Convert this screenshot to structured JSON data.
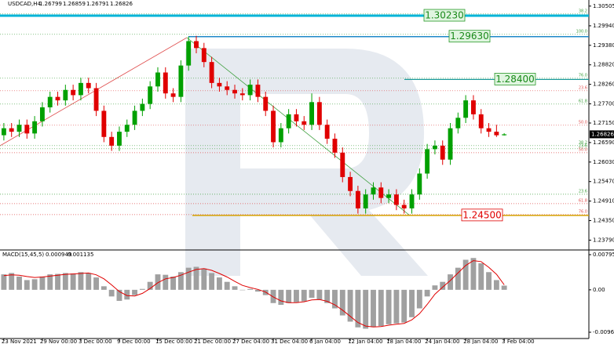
{
  "chart_data": [
    {
      "type": "candlestick",
      "title": "USDCAD,H4",
      "up_color": "#00a000",
      "down_color": "#e00000",
      "open": [
        1.268,
        1.27,
        1.269,
        1.271,
        1.2685,
        1.272,
        1.276,
        1.279,
        1.278,
        1.281,
        1.2795,
        1.283,
        1.2815,
        1.275,
        1.2675,
        1.265,
        1.269,
        1.271,
        1.275,
        1.277,
        1.282,
        1.286,
        1.28,
        1.279,
        1.288,
        1.295,
        1.293,
        1.289,
        1.283,
        1.282,
        1.281,
        1.28,
        1.2795,
        1.2825,
        1.279,
        1.275,
        1.266,
        1.27,
        1.274,
        1.272,
        1.271,
        1.2775,
        1.271,
        1.267,
        1.263,
        1.256,
        1.252,
        1.247,
        1.251,
        1.253,
        1.25,
        1.251,
        1.248,
        1.247,
        1.251,
        1.257,
        1.264,
        1.265,
        1.261,
        1.27,
        1.273,
        1.278,
        1.274,
        1.27,
        1.269,
        1.26799
      ],
      "high": [
        1.2715,
        1.2715,
        1.2725,
        1.2725,
        1.2735,
        1.2775,
        1.2805,
        1.2805,
        1.2825,
        1.2825,
        1.2845,
        1.2845,
        1.283,
        1.2765,
        1.269,
        1.2705,
        1.2725,
        1.2765,
        1.2785,
        1.2835,
        1.2875,
        1.2875,
        1.2815,
        1.2895,
        1.2963,
        1.2965,
        1.2945,
        1.2905,
        1.2845,
        1.2835,
        1.2825,
        1.2815,
        1.284,
        1.284,
        1.2805,
        1.2765,
        1.2715,
        1.2755,
        1.2755,
        1.2735,
        1.28,
        1.279,
        1.2725,
        1.2685,
        1.2645,
        1.2575,
        1.2535,
        1.2525,
        1.2545,
        1.2545,
        1.2525,
        1.2525,
        1.2495,
        1.2525,
        1.2585,
        1.2655,
        1.2665,
        1.2665,
        1.2715,
        1.2745,
        1.2795,
        1.2795,
        1.2755,
        1.2715,
        1.271,
        1.26859
      ],
      "low": [
        1.2665,
        1.2675,
        1.2675,
        1.267,
        1.267,
        1.2705,
        1.2745,
        1.2765,
        1.2765,
        1.278,
        1.278,
        1.28,
        1.2735,
        1.266,
        1.2635,
        1.2635,
        1.2675,
        1.2695,
        1.2735,
        1.2755,
        1.2805,
        1.2785,
        1.2775,
        1.2775,
        1.2865,
        1.2915,
        1.2875,
        1.2815,
        1.2805,
        1.2795,
        1.2785,
        1.278,
        1.278,
        1.2775,
        1.2735,
        1.2645,
        1.2645,
        1.2685,
        1.2705,
        1.2695,
        1.2695,
        1.2695,
        1.2655,
        1.2615,
        1.2545,
        1.2505,
        1.2455,
        1.2455,
        1.2495,
        1.2485,
        1.2485,
        1.2465,
        1.2455,
        1.2455,
        1.2495,
        1.2555,
        1.2625,
        1.2595,
        1.2595,
        1.2685,
        1.2715,
        1.2725,
        1.2685,
        1.2675,
        1.2675,
        1.26791
      ],
      "close": [
        1.27,
        1.269,
        1.271,
        1.2685,
        1.272,
        1.276,
        1.279,
        1.278,
        1.281,
        1.2795,
        1.283,
        1.2815,
        1.275,
        1.2675,
        1.265,
        1.269,
        1.271,
        1.275,
        1.277,
        1.282,
        1.286,
        1.28,
        1.279,
        1.288,
        1.295,
        1.293,
        1.289,
        1.283,
        1.282,
        1.281,
        1.28,
        1.2795,
        1.2825,
        1.279,
        1.275,
        1.266,
        1.27,
        1.274,
        1.272,
        1.271,
        1.2775,
        1.271,
        1.267,
        1.263,
        1.256,
        1.252,
        1.247,
        1.251,
        1.253,
        1.25,
        1.251,
        1.248,
        1.247,
        1.251,
        1.257,
        1.264,
        1.265,
        1.261,
        1.27,
        1.273,
        1.278,
        1.274,
        1.27,
        1.269,
        1.26799,
        1.26826
      ],
      "xlim": [
        -0.5,
        76
      ],
      "xticks": [
        {
          "value": 0,
          "label": "23 Nov 2021"
        },
        {
          "value": 5,
          "label": "29 Nov 00:00"
        },
        {
          "value": 10,
          "label": "3 Dec 00:00"
        },
        {
          "value": 15,
          "label": "9 Dec 00:00"
        },
        {
          "value": 20,
          "label": "15 Dec 00:00"
        },
        {
          "value": 25,
          "label": "21 Dec 00:00"
        },
        {
          "value": 30,
          "label": "27 Dec 04:00"
        },
        {
          "value": 35,
          "label": "31 Dec 04:00"
        },
        {
          "value": 40,
          "label": "6 Jan 04:00"
        },
        {
          "value": 45,
          "label": "12 Jan 04:00"
        },
        {
          "value": 50,
          "label": "18 Jan 04:00"
        },
        {
          "value": 55,
          "label": "24 Jan 04:00"
        },
        {
          "value": 60,
          "label": "28 Jan 04:00"
        },
        {
          "value": 65,
          "label": "3 Feb 04:00"
        }
      ],
      "ylim": [
        1.2353,
        1.3068
      ],
      "yticks": [
        1.30505,
        {
          "value": 1.2994,
          "label": "1.29940"
        },
        {
          "value": 1.2938,
          "label": "1.29380"
        },
        {
          "value": 1.2882,
          "label": "1.28820"
        },
        {
          "value": 1.2826,
          "label": "1.28260"
        },
        {
          "value": 1.277,
          "label": "1.27700"
        },
        {
          "value": 1.2715,
          "label": "1.27150"
        },
        {
          "value": 1.2659,
          "label": "1.26590"
        },
        {
          "value": 1.2603,
          "label": "1.26030"
        },
        {
          "value": 1.2547,
          "label": "1.25470"
        },
        {
          "value": 1.2491,
          "label": "1.24910"
        },
        {
          "value": 1.2435,
          "label": "1.24350"
        },
        {
          "value": 1.2379,
          "label": "1.23790"
        }
      ],
      "levels": [
        {
          "value": 1.3023,
          "label": "1.30230",
          "color": "#00b4d8"
        },
        {
          "value": 1.2963,
          "label": "1.29630",
          "color": "#1e88c8"
        },
        {
          "value": 1.284,
          "label": "1.28400",
          "color": "#1a9a9a"
        },
        {
          "value": 1.245,
          "label": "1.24500",
          "color": "#d4a000"
        }
      ],
      "fibs": [
        {
          "value": 1.3028,
          "label": "38.2",
          "color": "#40a040"
        },
        {
          "value": 1.29695,
          "label": "100.0",
          "color": "#40a040"
        },
        {
          "value": 1.28436,
          "label": "76.0",
          "color": "#40a040"
        },
        {
          "value": 1.28076,
          "label": "23.6",
          "color": "#e05050"
        },
        {
          "value": 1.27694,
          "label": "61.8",
          "color": "#40a040"
        },
        {
          "value": 1.27087,
          "label": "50.0",
          "color": "#e05050"
        },
        {
          "value": 1.26502,
          "label": "38.2",
          "color": "#40a040"
        },
        {
          "value": 1.26412,
          "label": "23.6",
          "color": "#40a040"
        },
        {
          "value": 1.26299,
          "label": "50.0",
          "color": "#e05050"
        },
        {
          "value": 1.25107,
          "label": "23.6",
          "color": "#40a040"
        },
        {
          "value": 1.24837,
          "label": "61.8",
          "color": "#e05050"
        },
        {
          "value": 1.24522,
          "label": "76.0",
          "color": "#e05050"
        }
      ]
    },
    {
      "type": "macd",
      "title": "MACD(15,45,5)",
      "histogram": {
        "color": "#a0a0a0",
        "values": [
          0.0035,
          0.0038,
          0.003,
          0.0022,
          0.0024,
          0.003,
          0.0035,
          0.0036,
          0.0038,
          0.0037,
          0.004,
          0.0038,
          0.0028,
          0.0008,
          -0.0015,
          -0.0025,
          -0.0022,
          -0.0012,
          0.0002,
          0.0018,
          0.0035,
          0.0034,
          0.003,
          0.004,
          0.005,
          0.0052,
          0.0048,
          0.0038,
          0.0028,
          0.0018,
          0.0008,
          0.0,
          0.0002,
          -0.0004,
          -0.0012,
          -0.003,
          -0.0034,
          -0.003,
          -0.0028,
          -0.0026,
          -0.0018,
          -0.0022,
          -0.003,
          -0.0042,
          -0.0058,
          -0.0072,
          -0.0085,
          -0.0088,
          -0.0084,
          -0.0082,
          -0.0078,
          -0.0076,
          -0.0074,
          -0.0062,
          -0.0042,
          -0.0015,
          0.001,
          0.0018,
          0.0035,
          0.005,
          0.0068,
          0.0072,
          0.006,
          0.004,
          0.0022,
          0.000949
        ]
      },
      "signal": {
        "color": "#e00000",
        "values": [
          0.0032,
          0.0034,
          0.0033,
          0.003,
          0.0028,
          0.0029,
          0.0031,
          0.0033,
          0.0035,
          0.0036,
          0.0037,
          0.0038,
          0.0034,
          0.0025,
          0.0011,
          -0.0004,
          -0.0013,
          -0.0014,
          -0.0008,
          0.0003,
          0.0016,
          0.0025,
          0.0028,
          0.0033,
          0.004,
          0.0046,
          0.0048,
          0.0044,
          0.0037,
          0.0029,
          0.0019,
          0.001,
          0.0005,
          0.0001,
          -0.0005,
          -0.0016,
          -0.0025,
          -0.0029,
          -0.0029,
          -0.0027,
          -0.0023,
          -0.0022,
          -0.0026,
          -0.0034,
          -0.0046,
          -0.006,
          -0.0074,
          -0.0082,
          -0.0084,
          -0.0083,
          -0.008,
          -0.0078,
          -0.0076,
          -0.0068,
          -0.0054,
          -0.0033,
          -0.001,
          0.0006,
          0.0021,
          0.0038,
          0.0055,
          0.0066,
          0.0064,
          0.0051,
          0.0035,
          0.001135
        ]
      },
      "ylim": [
        -0.01102,
        0.00884
      ],
      "yticks": [
        0.007955,
        {
          "value": 0,
          "label": "0.00"
        },
        -0.0096
      ]
    }
  ]
}
